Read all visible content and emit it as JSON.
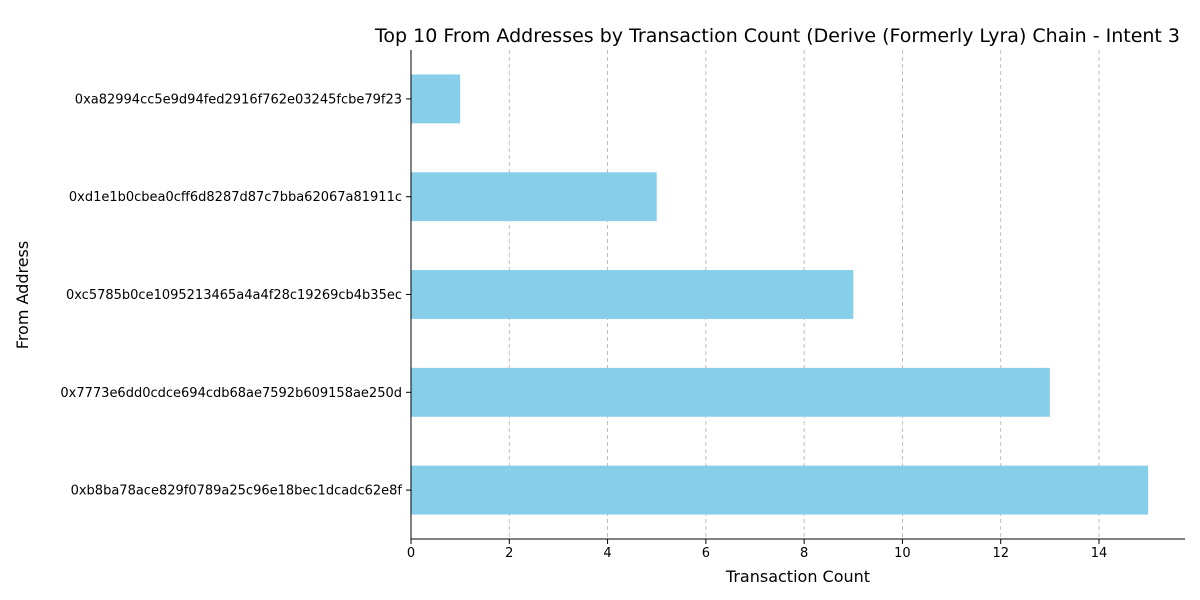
{
  "chart_data": {
    "type": "bar",
    "orientation": "horizontal",
    "title": "Top 10 From Addresses by Transaction Count (Derive (Formerly Lyra) Chain - Intent 3",
    "xlabel": "Transaction Count",
    "ylabel": "From Address",
    "categories": [
      "0xa82994cc5e9d94fed2916f762e03245fcbe79f23",
      "0xd1e1b0cbea0cff6d8287d87c7bba62067a81911c",
      "0xc5785b0ce1095213465a4a4f28c19269cb4b35ec",
      "0x7773e6dd0cdce694cdb68ae7592b609158ae250d",
      "0xb8ba78ace829f0789a25c96e18bec1dcadc62e8f"
    ],
    "values": [
      1,
      5,
      9,
      13,
      15
    ],
    "xlim": [
      0,
      15.75
    ],
    "xticks": [
      "0",
      "2",
      "4",
      "6",
      "8",
      "10",
      "12",
      "14"
    ],
    "grid": "x-dashed",
    "bar_color": "#87ceeb",
    "grid_color": "#b0b0b0"
  }
}
